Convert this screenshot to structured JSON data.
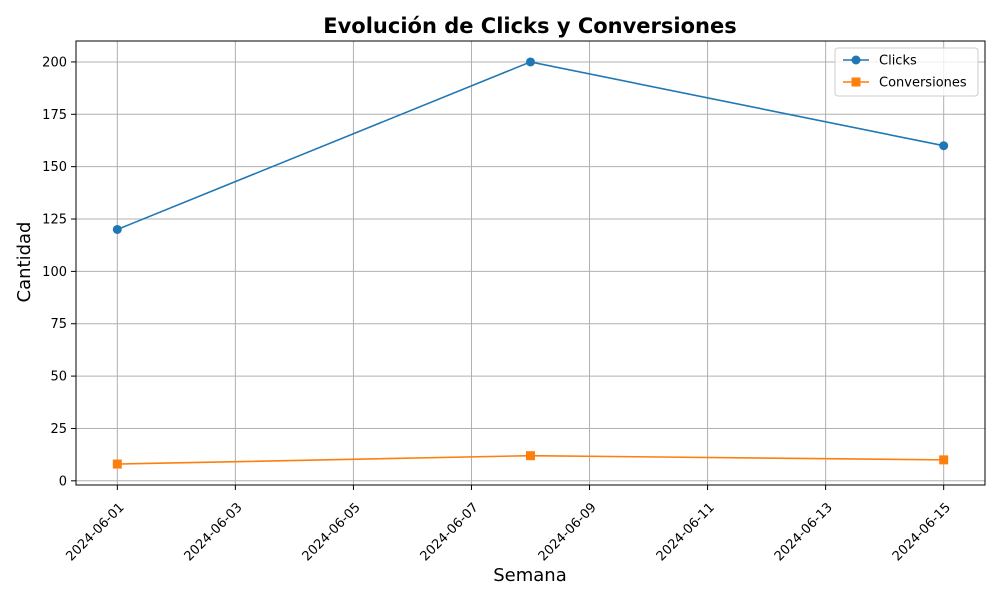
{
  "chart_data": {
    "type": "line",
    "title": "Evolución de Clicks y Conversiones",
    "xlabel": "Semana",
    "ylabel": "Cantidad",
    "x_type": "date",
    "x": [
      "2024-06-01",
      "2024-06-08",
      "2024-06-15"
    ],
    "xlim": [
      "2024-05-31",
      "2024-06-15"
    ],
    "ylim": [
      0,
      210
    ],
    "x_ticks": [
      "2024-06-01",
      "2024-06-03",
      "2024-06-05",
      "2024-06-07",
      "2024-06-09",
      "2024-06-11",
      "2024-06-13",
      "2024-06-15"
    ],
    "y_ticks": [
      0,
      25,
      50,
      75,
      100,
      125,
      150,
      175,
      200
    ],
    "grid": true,
    "legend_position": "top-right",
    "series": [
      {
        "name": "Clicks",
        "values": [
          120,
          200,
          160
        ],
        "color": "#1f77b4",
        "marker": "circle"
      },
      {
        "name": "Conversiones",
        "values": [
          8,
          12,
          10
        ],
        "color": "#ff7f0e",
        "marker": "square"
      }
    ]
  }
}
